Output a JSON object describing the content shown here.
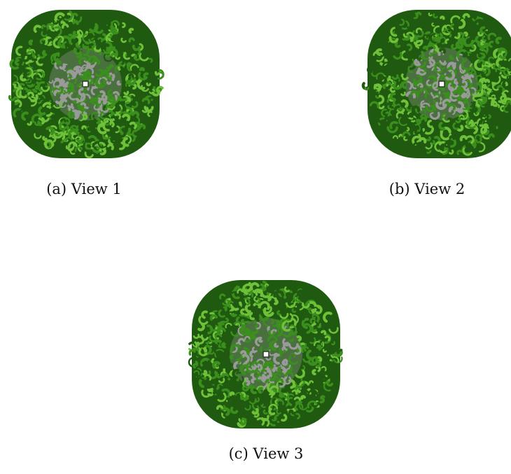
{
  "figure": {
    "panels": [
      {
        "id": "a",
        "caption": "(a) View 1"
      },
      {
        "id": "b",
        "caption": "(b) View 2"
      },
      {
        "id": "c",
        "caption": "(c) View 3"
      }
    ]
  },
  "colors": {
    "foliage_dark": "#1f5a10",
    "foliage_mid": "#3b8f1c",
    "foliage_light": "#6fc13a",
    "core_gray": "#9a9a9a",
    "background": "#ffffff"
  }
}
